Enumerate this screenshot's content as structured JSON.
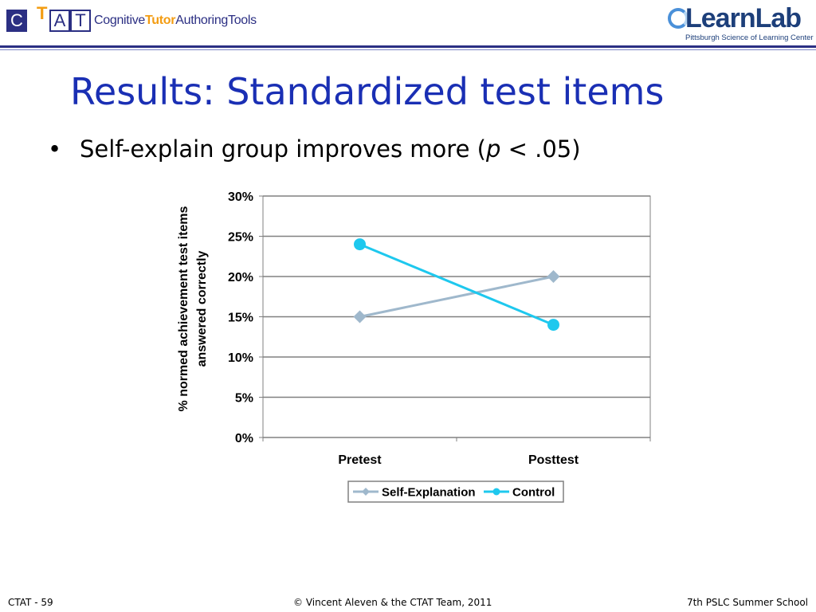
{
  "header": {
    "ctat_letters": [
      "C",
      "T",
      "A",
      "T"
    ],
    "ctat_sub_1": "Cognitive",
    "ctat_sub_2": "Tutor",
    "ctat_sub_3": "AuthoringTools",
    "learnlab_word": "LearnLab",
    "learnlab_tag": "Pittsburgh Science of Learning Center",
    "accent_color": "#2b2f83"
  },
  "slide": {
    "title": "Results: Standardized test items",
    "bullet": {
      "marker": "•",
      "text_before": "Self-explain group improves more (",
      "text_italic": "p",
      "text_after": " < .05)"
    }
  },
  "chart_data": {
    "type": "line",
    "categories": [
      "Pretest",
      "Posttest"
    ],
    "series": [
      {
        "name": "Self-Explanation",
        "values": [
          15,
          20
        ],
        "color": "#9fb8cc",
        "marker": "diamond"
      },
      {
        "name": "Control",
        "values": [
          24,
          14
        ],
        "color": "#1ec8ee",
        "marker": "circle"
      }
    ],
    "ylabel_line1": "% normed achievement test items",
    "ylabel_line2": "answered correctly",
    "ylim": [
      0,
      30
    ],
    "yticks": [
      "0%",
      "5%",
      "10%",
      "15%",
      "20%",
      "25%",
      "30%"
    ],
    "ytick_values": [
      0,
      5,
      10,
      15,
      20,
      25,
      30
    ],
    "grid": true,
    "legend": "bottom"
  },
  "footer": {
    "left": "CTAT - 59",
    "center": "© Vincent Aleven & the CTAT Team, 2011",
    "right": "7th PSLC Summer School"
  }
}
